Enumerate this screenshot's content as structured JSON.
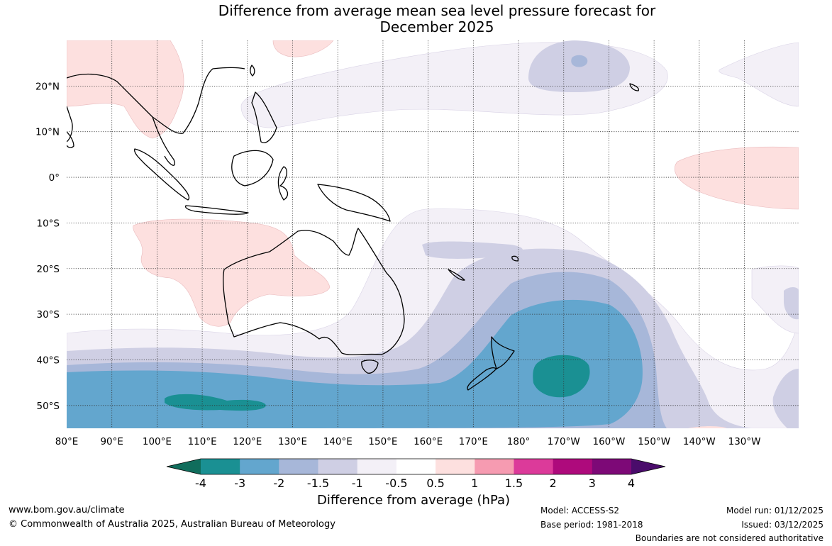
{
  "title": {
    "line1": "Difference from average mean sea level pressure forecast for",
    "line2": "December 2025"
  },
  "map": {
    "lon_labels": [
      "80°E",
      "90°E",
      "100°E",
      "110°E",
      "120°E",
      "130°E",
      "140°E",
      "150°E",
      "160°E",
      "170°E",
      "180°",
      "170°W",
      "160°W",
      "150°W",
      "140°W",
      "130°W"
    ],
    "lat_labels": [
      "20°N",
      "10°N",
      "0°",
      "10°S",
      "20°S",
      "30°S",
      "40°S",
      "50°S"
    ],
    "extent": {
      "lon_min": 80,
      "lon_max": 242,
      "lat_min": -55,
      "lat_max": 30
    }
  },
  "legend": {
    "title": "Difference from average (hPa)",
    "tick_labels": [
      "-4",
      "-3",
      "-2",
      "-1.5",
      "-1",
      "-0.5",
      "0.5",
      "1",
      "1.5",
      "2",
      "3",
      "4"
    ],
    "under_color": "#106d5c",
    "over_color": "#4a0c6b",
    "colors": [
      "#1a9093",
      "#63a6ce",
      "#a7b7d9",
      "#cfcfe4",
      "#f3f0f7",
      "#ffffff",
      "#fde0df",
      "#f69bb1",
      "#dc3a9a",
      "#ae0a7c",
      "#7d0977"
    ]
  },
  "footer": {
    "website": "www.bom.gov.au/climate",
    "copyright": "© Commonwealth of Australia 2025, Australian Bureau of Meteorology",
    "model": "Model: ACCESS-S2",
    "base_period": "Base period: 1981-2018",
    "model_run": "Model run: 01/12/2025",
    "issued": "Issued: 03/12/2025",
    "disclaimer": "Boundaries are not considered authoritative"
  }
}
